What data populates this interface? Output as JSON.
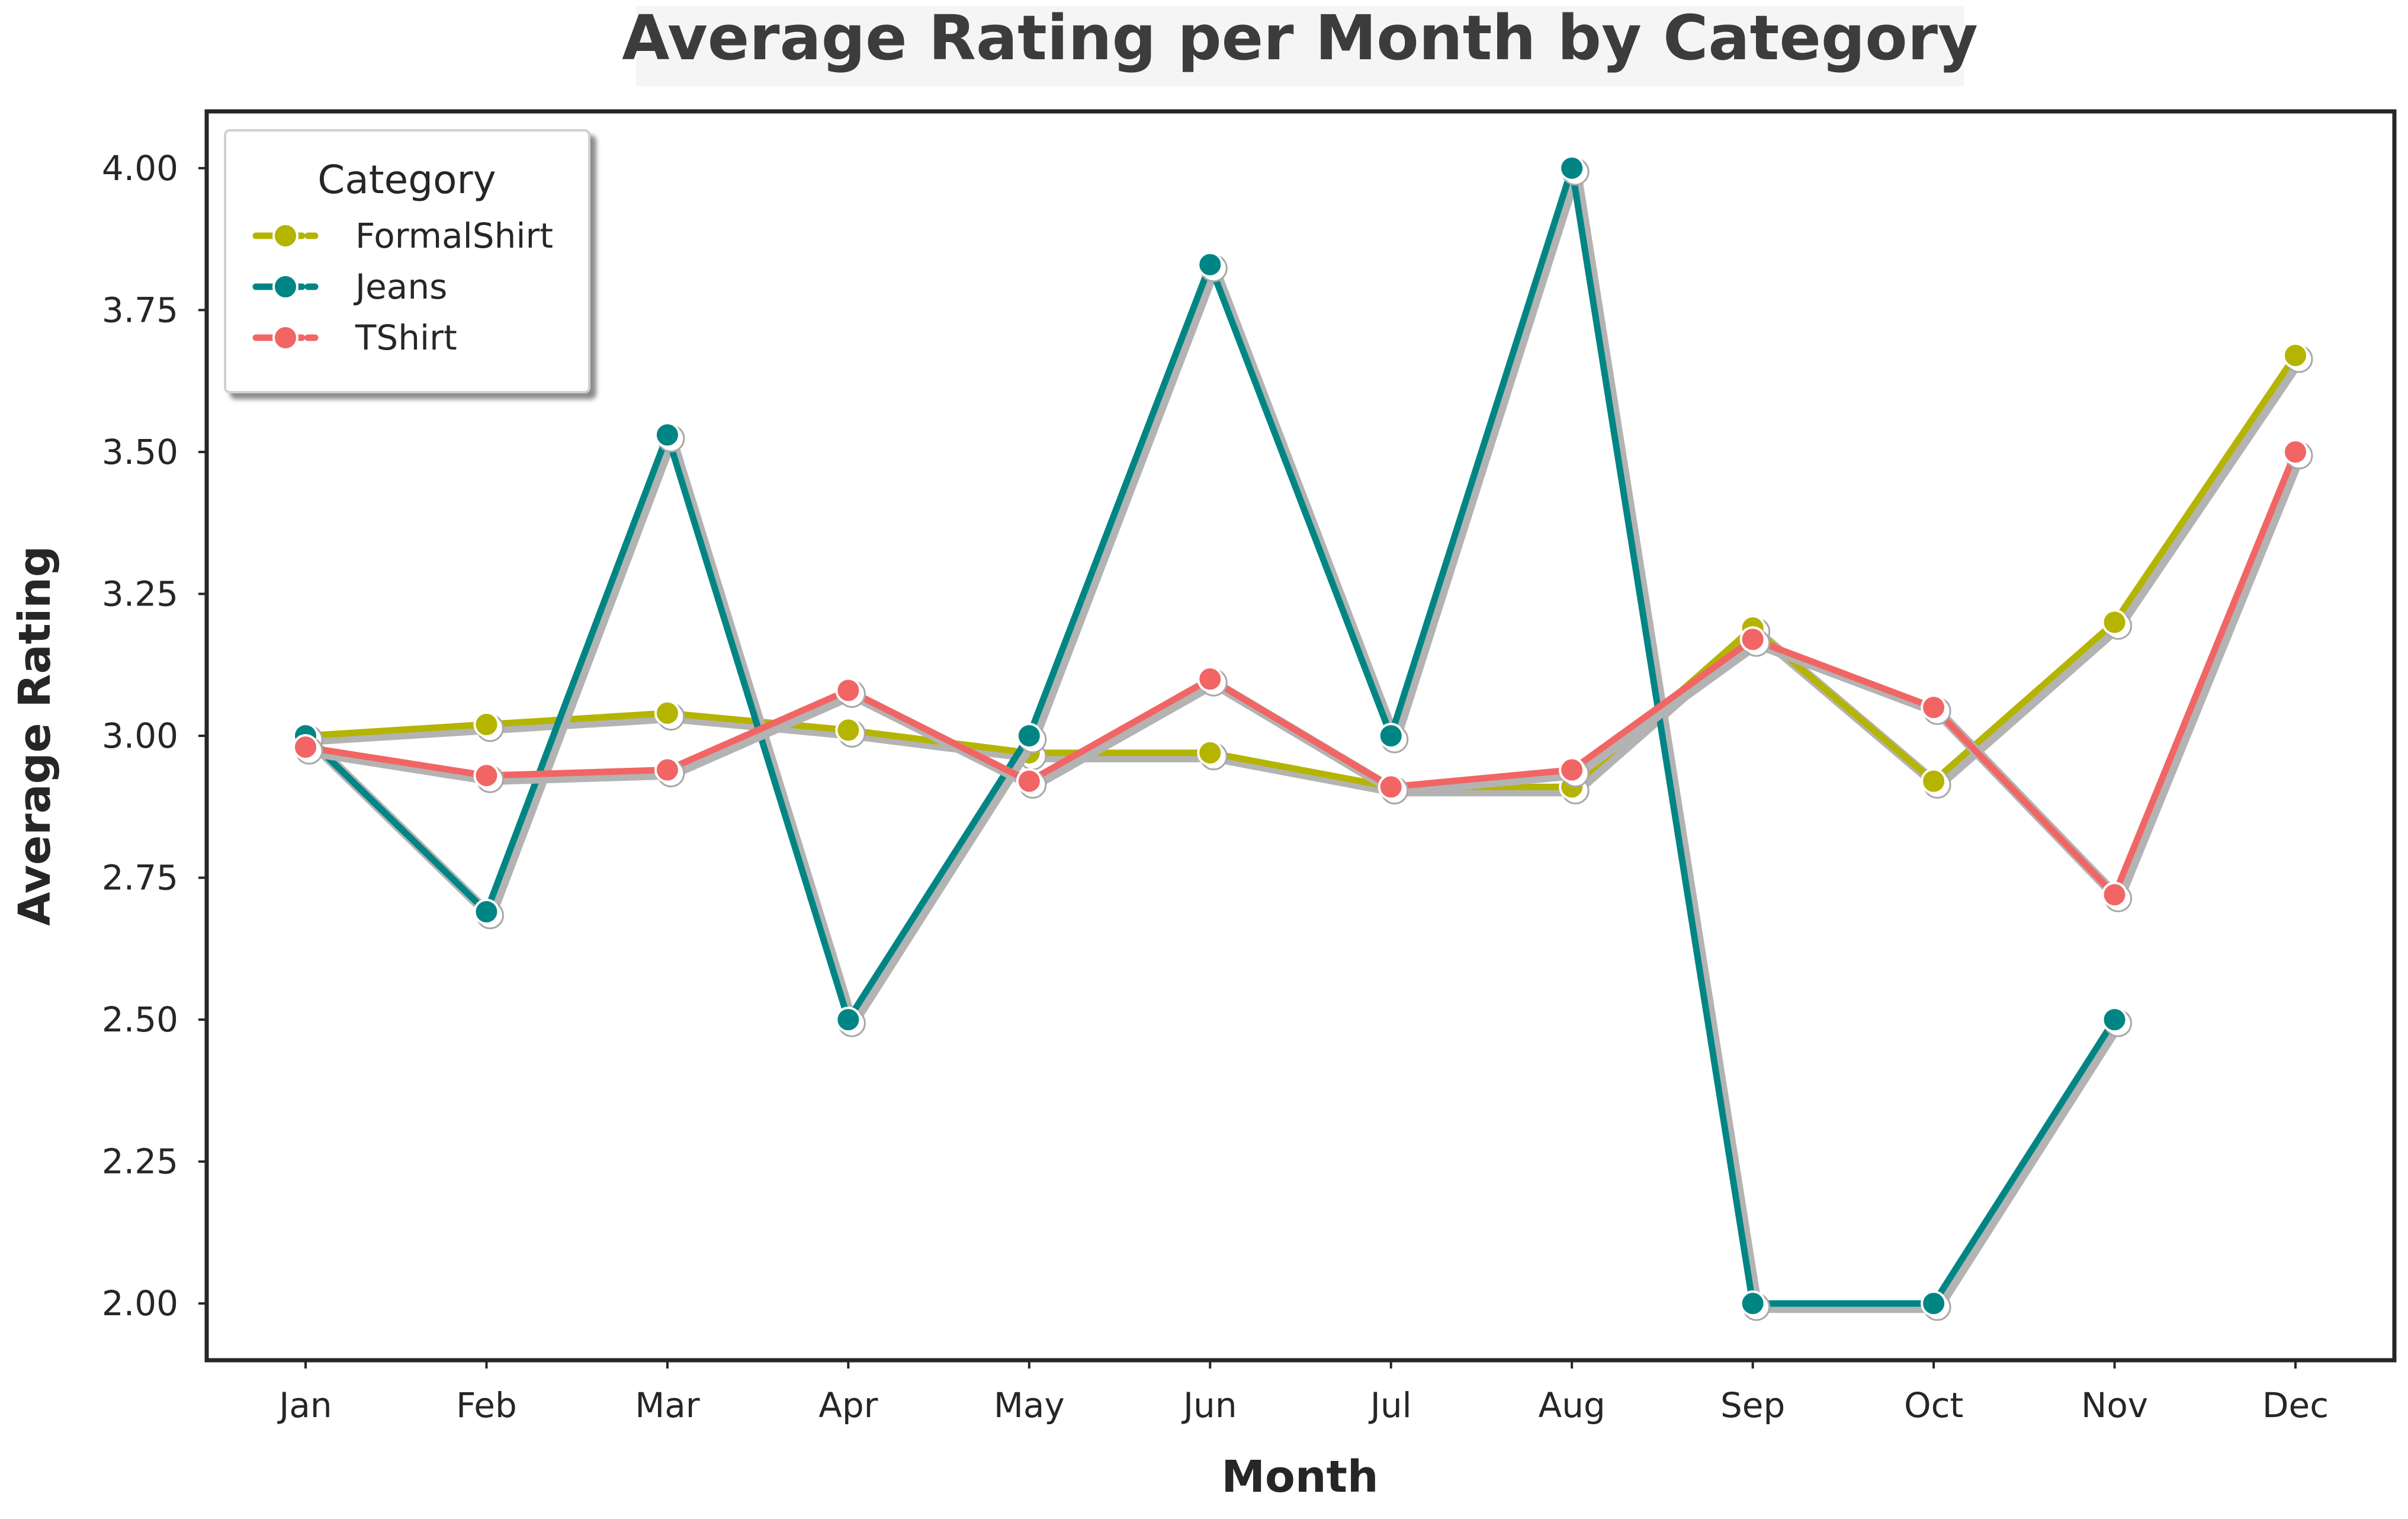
{
  "chart_data": {
    "type": "line",
    "title": "Average Rating per Month by Category",
    "xlabel": "Month",
    "ylabel": "Average Rating",
    "categories": [
      "Jan",
      "Feb",
      "Mar",
      "Apr",
      "May",
      "Jun",
      "Jul",
      "Aug",
      "Sep",
      "Oct",
      "Nov",
      "Dec"
    ],
    "ylim": [
      1.9,
      4.1
    ],
    "yticks": [
      "2.00",
      "2.25",
      "2.50",
      "2.75",
      "3.00",
      "3.25",
      "3.50",
      "3.75",
      "4.00"
    ],
    "grid": false,
    "legend": {
      "title": "Category",
      "placement": "top-left"
    },
    "series": [
      {
        "name": "FormalShirt",
        "color": "#b5b400",
        "values": [
          3.0,
          3.02,
          3.04,
          3.01,
          2.97,
          2.97,
          2.91,
          2.91,
          3.19,
          2.92,
          3.2,
          3.67
        ]
      },
      {
        "name": "Jeans",
        "color": "#008585",
        "values": [
          3.0,
          2.69,
          3.53,
          2.5,
          3.0,
          3.83,
          3.0,
          4.0,
          2.0,
          2.0,
          2.5,
          null
        ]
      },
      {
        "name": "TShirt",
        "color": "#f26565",
        "values": [
          2.98,
          2.93,
          2.94,
          3.08,
          2.92,
          3.1,
          2.91,
          2.94,
          3.17,
          3.05,
          2.72,
          3.5
        ]
      }
    ]
  }
}
